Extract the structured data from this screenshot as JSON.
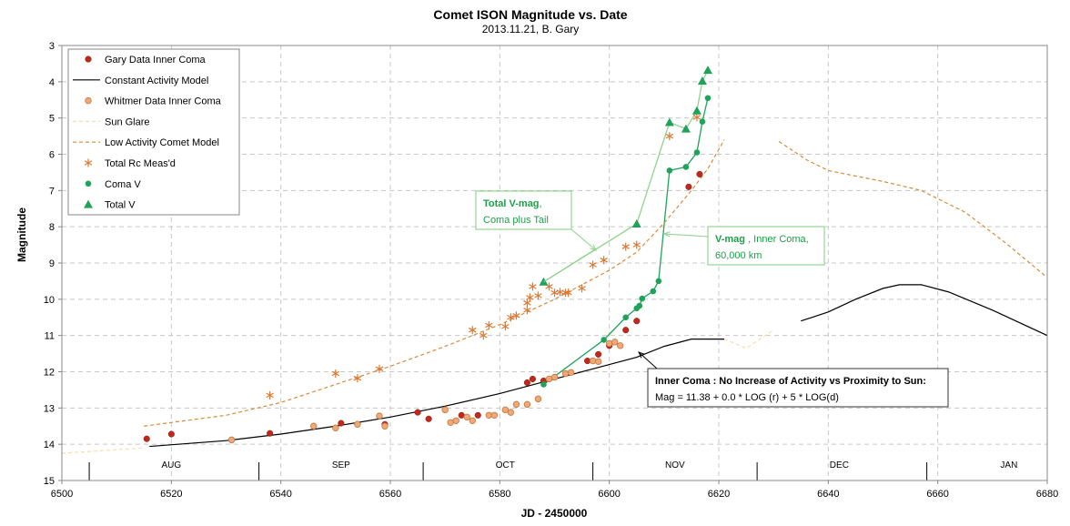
{
  "chart_data": {
    "type": "scatter",
    "title": "Comet ISON Magnitude vs. Date",
    "subtitle": "2013.11.21, B. Gary",
    "xlabel": "JD - 2450000",
    "ylabel": "Magnitude",
    "xlim": [
      6500,
      6680
    ],
    "ylim": [
      15,
      3
    ],
    "y_inverted": true,
    "xticks": [
      "6500",
      "6520",
      "6540",
      "6560",
      "6580",
      "6600",
      "6620",
      "6640",
      "6660",
      "6680"
    ],
    "yticks": [
      "3",
      "4",
      "5",
      "6",
      "7",
      "8",
      "9",
      "10",
      "11",
      "12",
      "13",
      "14",
      "15"
    ],
    "grid": true,
    "legend_position": "top-left",
    "months": [
      {
        "label": "AUG",
        "x": 6520
      },
      {
        "label": "SEP",
        "x": 6551
      },
      {
        "label": "OCT",
        "x": 6581
      },
      {
        "label": "NOV",
        "x": 6612
      },
      {
        "label": "DEC",
        "x": 6642
      },
      {
        "label": "JAN",
        "x": 6673
      }
    ],
    "month_boundaries": [
      6505,
      6536,
      6566,
      6597,
      6627,
      6658
    ],
    "series": [
      {
        "name": "Gary Data Inner Coma",
        "kind": "marker",
        "color": "#c0281c",
        "points": [
          [
            6515.5,
            13.85
          ],
          [
            6520,
            13.72
          ],
          [
            6538,
            13.7
          ],
          [
            6551,
            13.42
          ],
          [
            6559,
            13.45
          ],
          [
            6565,
            13.12
          ],
          [
            6567,
            13.3
          ],
          [
            6573,
            13.2
          ],
          [
            6576,
            13.2
          ],
          [
            6585,
            12.3
          ],
          [
            6586,
            12.2
          ],
          [
            6588,
            12.25
          ],
          [
            6596,
            11.7
          ],
          [
            6598,
            11.52
          ],
          [
            6600,
            11.28
          ],
          [
            6603,
            10.85
          ],
          [
            6605,
            10.6
          ],
          [
            6614.5,
            6.9
          ],
          [
            6616.5,
            6.55
          ]
        ]
      },
      {
        "name": "Constant Activity Model",
        "kind": "line",
        "color": "#000000",
        "segments": [
          [
            [
              6516,
              14.06
            ],
            [
              6530,
              13.9
            ],
            [
              6540,
              13.72
            ],
            [
              6550,
              13.5
            ],
            [
              6560,
              13.25
            ],
            [
              6570,
              12.95
            ],
            [
              6580,
              12.6
            ],
            [
              6590,
              12.2
            ],
            [
              6600,
              11.8
            ],
            [
              6605,
              11.6
            ],
            [
              6610,
              11.3
            ],
            [
              6615,
              11.1
            ],
            [
              6621,
              11.1
            ]
          ],
          [
            [
              6635,
              10.6
            ],
            [
              6640,
              10.35
            ],
            [
              6645,
              10.0
            ],
            [
              6650,
              9.7
            ],
            [
              6653,
              9.6
            ],
            [
              6657,
              9.6
            ],
            [
              6662,
              9.8
            ],
            [
              6670,
              10.3
            ],
            [
              6680,
              11.0
            ]
          ]
        ]
      },
      {
        "name": "Whitmer Data Inner Coma",
        "kind": "marker",
        "color": "#f0a878",
        "points": [
          [
            6531,
            13.88
          ],
          [
            6546,
            13.5
          ],
          [
            6550,
            13.55
          ],
          [
            6554,
            13.45
          ],
          [
            6558,
            13.22
          ],
          [
            6559,
            13.5
          ],
          [
            6570,
            13.05
          ],
          [
            6571,
            13.4
          ],
          [
            6572,
            13.35
          ],
          [
            6574,
            13.25
          ],
          [
            6575,
            13.35
          ],
          [
            6578,
            13.2
          ],
          [
            6579,
            13.2
          ],
          [
            6581,
            13.05
          ],
          [
            6582,
            13.12
          ],
          [
            6583,
            12.9
          ],
          [
            6585,
            12.9
          ],
          [
            6587,
            12.75
          ],
          [
            6589,
            12.2
          ],
          [
            6590,
            12.15
          ],
          [
            6592,
            12.05
          ],
          [
            6593,
            12.02
          ],
          [
            6597,
            11.7
          ],
          [
            6598,
            11.72
          ],
          [
            6600,
            11.22
          ],
          [
            6601,
            11.18
          ],
          [
            6602,
            11.28
          ]
        ]
      },
      {
        "name": "Sun Glare",
        "kind": "line",
        "color": "#f5dfb2",
        "dashed": true,
        "segments": [
          [
            [
              6500,
              14.25
            ],
            [
              6515,
              14.1
            ]
          ],
          [
            [
              6621,
              11.1
            ],
            [
              6625,
              11.35
            ],
            [
              6630,
              10.85
            ]
          ]
        ]
      },
      {
        "name": "Low Activity Comet Model",
        "kind": "line",
        "color": "#d88a3a",
        "dashed": true,
        "segments": [
          [
            [
              6515,
              13.5
            ],
            [
              6530,
              13.2
            ],
            [
              6540,
              12.85
            ],
            [
              6550,
              12.35
            ],
            [
              6560,
              11.85
            ],
            [
              6570,
              11.3
            ],
            [
              6580,
              10.7
            ],
            [
              6590,
              10.0
            ],
            [
              6600,
              9.2
            ],
            [
              6605,
              8.7
            ],
            [
              6610,
              7.9
            ],
            [
              6615,
              7.0
            ],
            [
              6618,
              6.4
            ],
            [
              6621,
              5.6
            ]
          ],
          [
            [
              6631,
              5.65
            ],
            [
              6636,
              6.15
            ],
            [
              6640,
              6.45
            ],
            [
              6650,
              6.75
            ],
            [
              6657,
              7.0
            ],
            [
              6665,
              7.6
            ],
            [
              6672,
              8.4
            ],
            [
              6680,
              9.4
            ]
          ]
        ]
      },
      {
        "name": "Total Rc Meas'd",
        "kind": "marker",
        "color": "#e07830",
        "points": [
          [
            6538,
            12.65
          ],
          [
            6550,
            12.05
          ],
          [
            6554,
            12.18
          ],
          [
            6558,
            11.92
          ],
          [
            6575,
            10.85
          ],
          [
            6577,
            11.0
          ],
          [
            6578,
            10.72
          ],
          [
            6581,
            10.75
          ],
          [
            6582,
            10.5
          ],
          [
            6583,
            10.45
          ],
          [
            6585,
            10.3
          ],
          [
            6585,
            10.1
          ],
          [
            6585.5,
            9.95
          ],
          [
            6586,
            9.65
          ],
          [
            6587,
            9.9
          ],
          [
            6589,
            9.65
          ],
          [
            6590,
            9.82
          ],
          [
            6591,
            9.8
          ],
          [
            6592,
            9.82
          ],
          [
            6592.5,
            9.82
          ],
          [
            6595,
            9.7
          ],
          [
            6597,
            9.05
          ],
          [
            6599,
            8.92
          ],
          [
            6603,
            8.55
          ],
          [
            6605,
            8.5
          ],
          [
            6611,
            5.5
          ],
          [
            6616,
            4.98
          ]
        ]
      },
      {
        "name": "Coma V",
        "kind": "marker",
        "color": "#1fa35a",
        "points": [
          [
            6588,
            12.35
          ],
          [
            6599,
            11.12
          ],
          [
            6603,
            10.5
          ],
          [
            6605,
            10.25
          ],
          [
            6605.5,
            10.18
          ],
          [
            6606,
            9.98
          ],
          [
            6608,
            9.78
          ],
          [
            6609,
            9.5
          ],
          [
            6611,
            6.45
          ],
          [
            6614,
            6.35
          ],
          [
            6616,
            5.95
          ],
          [
            6617,
            5.1
          ],
          [
            6618,
            4.45
          ]
        ]
      },
      {
        "name": "Total V",
        "kind": "marker",
        "color": "#1fa35a",
        "points": [
          [
            6588,
            9.52
          ],
          [
            6605,
            7.92
          ],
          [
            6611,
            5.12
          ],
          [
            6614,
            5.3
          ],
          [
            6616,
            4.8
          ],
          [
            6617,
            3.98
          ],
          [
            6618,
            3.68
          ]
        ]
      }
    ],
    "annotations": [
      {
        "id": "total-v",
        "bold": "Total V-mag",
        "rest": ",",
        "line2": "Coma plus Tail"
      },
      {
        "id": "v-mag",
        "bold": "V-mag",
        "rest": " , Inner Coma,",
        "line2": "60,000 km"
      },
      {
        "id": "inner-coma",
        "bold": "Inner Coma : No Increase of Activity vs Proximity to Sun:",
        "rest": "",
        "line2": "Mag = 11.38 + 0.0 * LOG (r) + 5 * LOG(d)"
      }
    ]
  }
}
